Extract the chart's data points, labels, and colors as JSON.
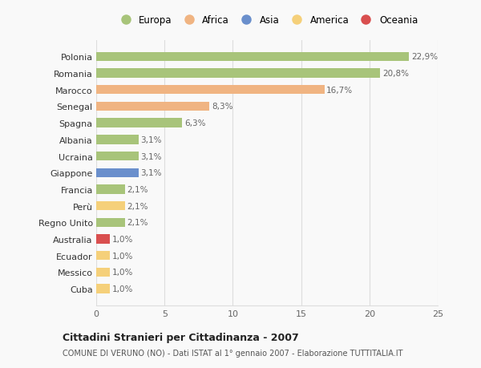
{
  "categories": [
    "Polonia",
    "Romania",
    "Marocco",
    "Senegal",
    "Spagna",
    "Albania",
    "Ucraina",
    "Giappone",
    "Francia",
    "Perù",
    "Regno Unito",
    "Australia",
    "Ecuador",
    "Messico",
    "Cuba"
  ],
  "values": [
    22.9,
    20.8,
    16.7,
    8.3,
    6.3,
    3.1,
    3.1,
    3.1,
    2.1,
    2.1,
    2.1,
    1.0,
    1.0,
    1.0,
    1.0
  ],
  "labels": [
    "22,9%",
    "20,8%",
    "16,7%",
    "8,3%",
    "6,3%",
    "3,1%",
    "3,1%",
    "3,1%",
    "2,1%",
    "2,1%",
    "2,1%",
    "1,0%",
    "1,0%",
    "1,0%",
    "1,0%"
  ],
  "bar_colors": [
    "#a8c47a",
    "#a8c47a",
    "#f0b482",
    "#f0b482",
    "#a8c47a",
    "#a8c47a",
    "#a8c47a",
    "#6a8fcc",
    "#a8c47a",
    "#f5d07a",
    "#a8c47a",
    "#d94f4f",
    "#f5d07a",
    "#f5d07a",
    "#f5d07a"
  ],
  "legend_labels": [
    "Europa",
    "Africa",
    "Asia",
    "America",
    "Oceania"
  ],
  "legend_colors": [
    "#a8c47a",
    "#f0b482",
    "#6a8fcc",
    "#f5d07a",
    "#d94f4f"
  ],
  "title": "Cittadini Stranieri per Cittadinanza - 2007",
  "subtitle": "COMUNE DI VERUNO (NO) - Dati ISTAT al 1° gennaio 2007 - Elaborazione TUTTITALIA.IT",
  "xlim": [
    0,
    25
  ],
  "xticks": [
    0,
    5,
    10,
    15,
    20,
    25
  ],
  "background_color": "#f9f9f9",
  "grid_color": "#dddddd"
}
